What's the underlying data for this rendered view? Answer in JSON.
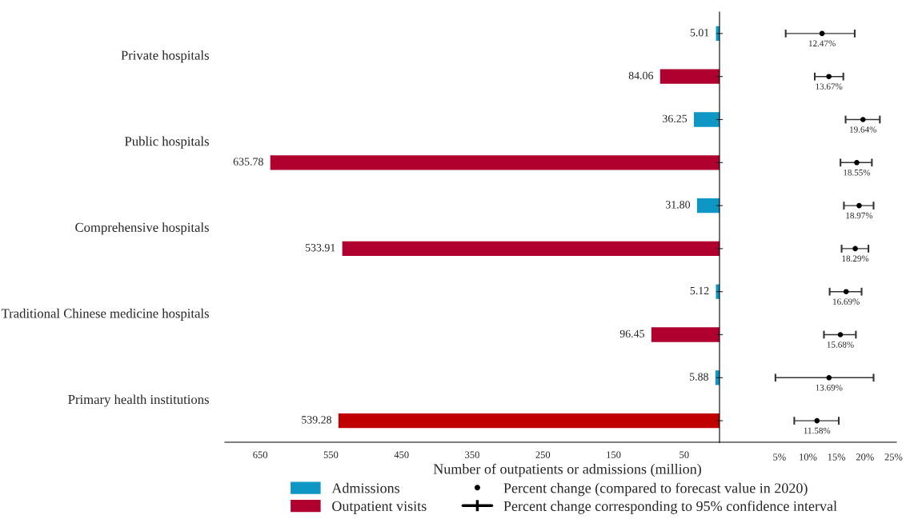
{
  "chart_data": [
    {
      "type": "bar",
      "orientation": "horizontal",
      "categories": [
        "Private hospitals",
        "Public hospitals",
        "Comprehensive hospitals",
        "Traditional Chinese medicine hospitals",
        "Primary health institutions"
      ],
      "series": [
        {
          "name": "Admissions",
          "color": "#0e96c4",
          "values": [
            5.01,
            36.25,
            31.8,
            5.12,
            5.88
          ],
          "value_labels": [
            "5.01",
            "36.25",
            "31.80",
            "5.12",
            "5.88"
          ]
        },
        {
          "name": "Outpatient visits",
          "color": "#b0002f",
          "colors": [
            "#b0002f",
            "#b0002f",
            "#b0002f",
            "#b0002f",
            "#c00000"
          ],
          "values": [
            84.06,
            635.78,
            533.91,
            96.45,
            539.28
          ],
          "value_labels": [
            "84.06",
            "635.78",
            "533.91",
            "96.45",
            "539.28"
          ]
        }
      ],
      "xlim": [
        700,
        0
      ],
      "xticks": [
        650,
        550,
        450,
        350,
        250,
        150,
        50
      ],
      "xlabel": "Number of outpatients or admissions (million)",
      "legend": "bottom"
    },
    {
      "type": "scatter",
      "orientation": "horizontal",
      "marker": "circle",
      "categories": [
        null,
        null,
        null,
        null,
        null,
        null,
        null,
        null,
        null,
        null
      ],
      "series": [
        {
          "name": "Percent change (compared to forecast value in 2020)",
          "color": "#000000",
          "values": [
            12.47,
            13.67,
            19.64,
            18.55,
            18.97,
            18.29,
            16.69,
            15.68,
            13.69,
            11.58
          ],
          "errors": [
            [
              6.1,
              18.2
            ],
            [
              11.2,
              16.2
            ],
            [
              16.6,
              22.6
            ],
            [
              15.7,
              21.2
            ],
            [
              16.3,
              21.5
            ],
            [
              15.9,
              20.6
            ],
            [
              13.8,
              19.4
            ],
            [
              12.8,
              18.4
            ],
            [
              4.3,
              21.5
            ],
            [
              7.6,
              15.4
            ]
          ],
          "value_labels": [
            "12.47%",
            "13.67%",
            "19.64%",
            "18.55%",
            "18.97%",
            "18.29%",
            "16.69%",
            "15.68%",
            "13.69%",
            "11.58%"
          ]
        }
      ],
      "annotations": [
        "Percent change corresponding to 95% confidence interval"
      ],
      "xlim": [
        -5.5,
        25.5
      ],
      "xticks": [
        {
          "value": 5,
          "label": "5%"
        },
        {
          "value": 10,
          "label": "10%"
        },
        {
          "value": 15,
          "label": "15%"
        },
        {
          "value": 20,
          "label": "20%"
        },
        {
          "value": 25,
          "label": "25%"
        }
      ],
      "legend": "bottom"
    }
  ]
}
